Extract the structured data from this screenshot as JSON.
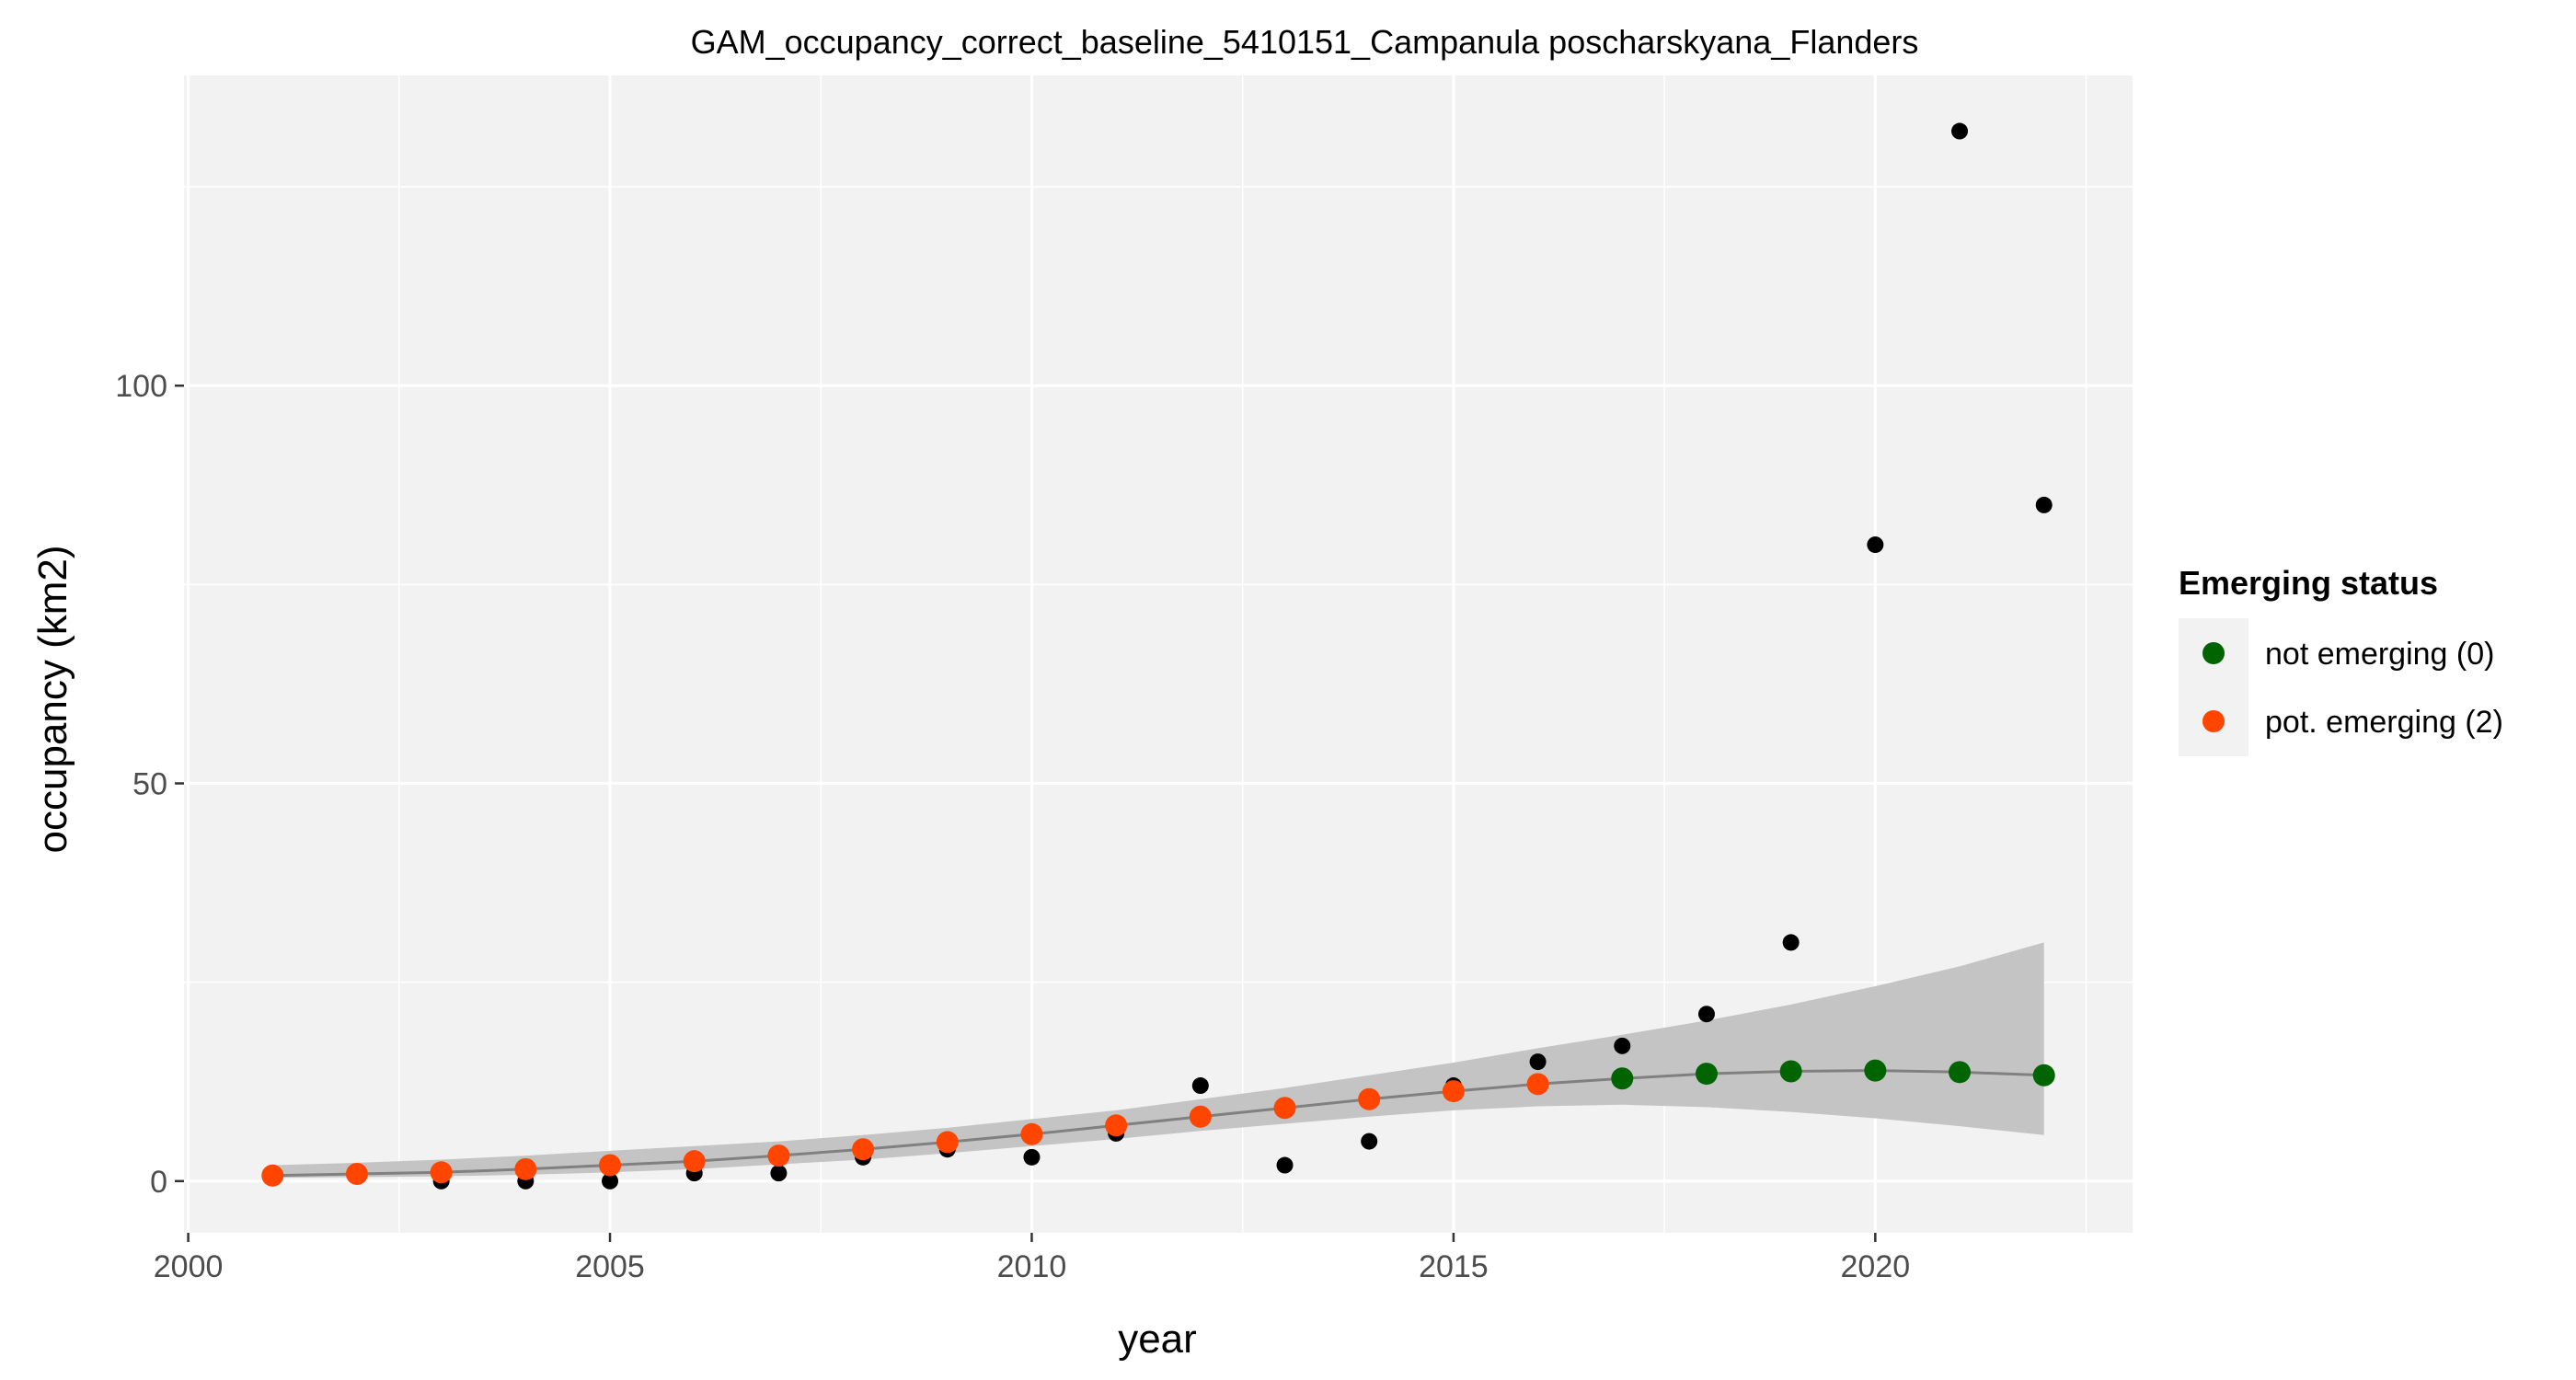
{
  "chart_data": {
    "type": "scatter",
    "title": "GAM_occupancy_correct_baseline_5410151_Campanula poscharskyana_Flanders",
    "xlabel": "year",
    "ylabel": "occupancy (km2)",
    "xlim": [
      1999.95,
      2023.05
    ],
    "ylim": [
      -6.5,
      139
    ],
    "x_ticks": [
      2000,
      2005,
      2010,
      2015,
      2020
    ],
    "y_ticks": [
      0,
      50,
      100
    ],
    "grid": true,
    "legend": {
      "title": "Emerging status",
      "position": "right",
      "entries": [
        {
          "label": "not emerging (0)",
          "color": "#006400"
        },
        {
          "label": "pot. emerging (2)",
          "color": "#FF4500"
        }
      ]
    },
    "observed": {
      "color": "#000000",
      "points": [
        {
          "x": 2001,
          "y": 1
        },
        {
          "x": 2002,
          "y": 1
        },
        {
          "x": 2003,
          "y": 0
        },
        {
          "x": 2004,
          "y": 0
        },
        {
          "x": 2005,
          "y": 0
        },
        {
          "x": 2006,
          "y": 1
        },
        {
          "x": 2007,
          "y": 1
        },
        {
          "x": 2008,
          "y": 3
        },
        {
          "x": 2009,
          "y": 4
        },
        {
          "x": 2010,
          "y": 3
        },
        {
          "x": 2011,
          "y": 6
        },
        {
          "x": 2012,
          "y": 12
        },
        {
          "x": 2013,
          "y": 2
        },
        {
          "x": 2014,
          "y": 5
        },
        {
          "x": 2015,
          "y": 12
        },
        {
          "x": 2016,
          "y": 15
        },
        {
          "x": 2017,
          "y": 17
        },
        {
          "x": 2018,
          "y": 21
        },
        {
          "x": 2019,
          "y": 30
        },
        {
          "x": 2020,
          "y": 80
        },
        {
          "x": 2021,
          "y": 132
        },
        {
          "x": 2022,
          "y": 85
        }
      ]
    },
    "fitted": {
      "line_color": "#808080",
      "band_color": "#C4C4C4",
      "points": [
        {
          "x": 2001,
          "y": 0.7,
          "lower": 0.4,
          "upper": 2.0,
          "status": 2
        },
        {
          "x": 2002,
          "y": 0.9,
          "lower": 0.5,
          "upper": 2.3,
          "status": 2
        },
        {
          "x": 2003,
          "y": 1.1,
          "lower": 0.6,
          "upper": 2.7,
          "status": 2
        },
        {
          "x": 2004,
          "y": 1.5,
          "lower": 0.8,
          "upper": 3.2,
          "status": 2
        },
        {
          "x": 2005,
          "y": 2.0,
          "lower": 1.1,
          "upper": 3.8,
          "status": 2
        },
        {
          "x": 2006,
          "y": 2.5,
          "lower": 1.5,
          "upper": 4.4,
          "status": 2
        },
        {
          "x": 2007,
          "y": 3.2,
          "lower": 2.1,
          "upper": 5.0,
          "status": 2
        },
        {
          "x": 2008,
          "y": 4.0,
          "lower": 2.7,
          "upper": 5.8,
          "status": 2
        },
        {
          "x": 2009,
          "y": 4.9,
          "lower": 3.5,
          "upper": 6.7,
          "status": 2
        },
        {
          "x": 2010,
          "y": 5.9,
          "lower": 4.4,
          "upper": 7.8,
          "status": 2
        },
        {
          "x": 2011,
          "y": 7.0,
          "lower": 5.3,
          "upper": 8.9,
          "status": 2
        },
        {
          "x": 2012,
          "y": 8.1,
          "lower": 6.3,
          "upper": 10.3,
          "status": 2
        },
        {
          "x": 2013,
          "y": 9.2,
          "lower": 7.2,
          "upper": 11.7,
          "status": 2
        },
        {
          "x": 2014,
          "y": 10.3,
          "lower": 8.1,
          "upper": 13.3,
          "status": 2
        },
        {
          "x": 2015,
          "y": 11.3,
          "lower": 8.9,
          "upper": 14.9,
          "status": 2
        },
        {
          "x": 2016,
          "y": 12.2,
          "lower": 9.4,
          "upper": 16.7,
          "status": 2
        },
        {
          "x": 2017,
          "y": 12.9,
          "lower": 9.6,
          "upper": 18.4,
          "status": 0
        },
        {
          "x": 2018,
          "y": 13.5,
          "lower": 9.3,
          "upper": 20.2,
          "status": 0
        },
        {
          "x": 2019,
          "y": 13.8,
          "lower": 8.7,
          "upper": 22.2,
          "status": 0
        },
        {
          "x": 2020,
          "y": 13.9,
          "lower": 7.9,
          "upper": 24.5,
          "status": 0
        },
        {
          "x": 2021,
          "y": 13.7,
          "lower": 6.9,
          "upper": 27.0,
          "status": 0
        },
        {
          "x": 2022,
          "y": 13.3,
          "lower": 5.8,
          "upper": 30.0,
          "status": 0
        }
      ]
    }
  }
}
